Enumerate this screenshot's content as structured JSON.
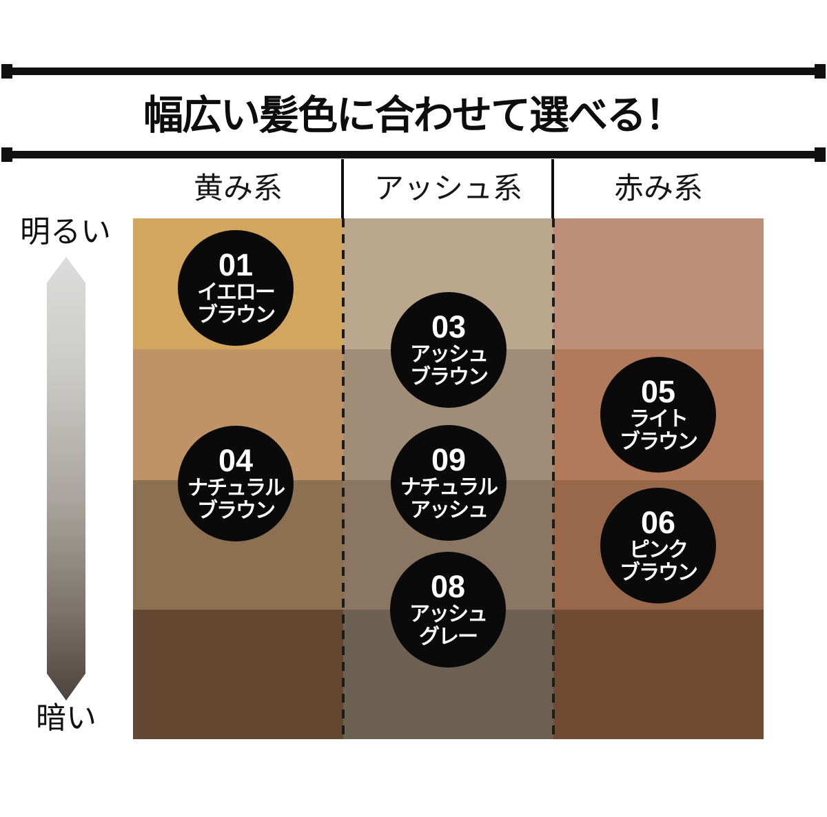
{
  "title": "幅広い髪色に合わせて選べる！",
  "axis": {
    "top": "明るい",
    "bottom": "暗い"
  },
  "columns": [
    {
      "label": "黄み系"
    },
    {
      "label": "アッシュ系"
    },
    {
      "label": "赤み系"
    }
  ],
  "grid": {
    "cells": [
      {
        "col": "黄み系",
        "row": 1,
        "color": "#D2A65F"
      },
      {
        "col": "アッシュ系",
        "row": 1,
        "color": "#BAA78E"
      },
      {
        "col": "赤み系",
        "row": 1,
        "color": "#BD8E78"
      },
      {
        "col": "黄み系",
        "row": 2,
        "color": "#BF9365"
      },
      {
        "col": "アッシュ系",
        "row": 2,
        "color": "#A08D78"
      },
      {
        "col": "赤み系",
        "row": 2,
        "color": "#B17A5B"
      },
      {
        "col": "黄み系",
        "row": 3,
        "color": "#8C7052"
      },
      {
        "col": "アッシュ系",
        "row": 3,
        "color": "#8A7663"
      },
      {
        "col": "赤み系",
        "row": 3,
        "color": "#99684B"
      },
      {
        "col": "黄み系",
        "row": 4,
        "color": "#654831"
      },
      {
        "col": "アッシュ系",
        "row": 4,
        "color": "#6C6153"
      },
      {
        "col": "赤み系",
        "row": 4,
        "color": "#6F4B34"
      }
    ]
  },
  "shades": [
    {
      "id": "01",
      "name": "イエロー\nブラウン"
    },
    {
      "id": "03",
      "name": "アッシュ\nブラウン"
    },
    {
      "id": "04",
      "name": "ナチュラル\nブラウン"
    },
    {
      "id": "05",
      "name": "ライト\nブラウン"
    },
    {
      "id": "06",
      "name": "ピンク\nブラウン"
    },
    {
      "id": "08",
      "name": "アッシュ\nグレー"
    },
    {
      "id": "09",
      "name": "ナチュラル\nアッシュ"
    }
  ]
}
